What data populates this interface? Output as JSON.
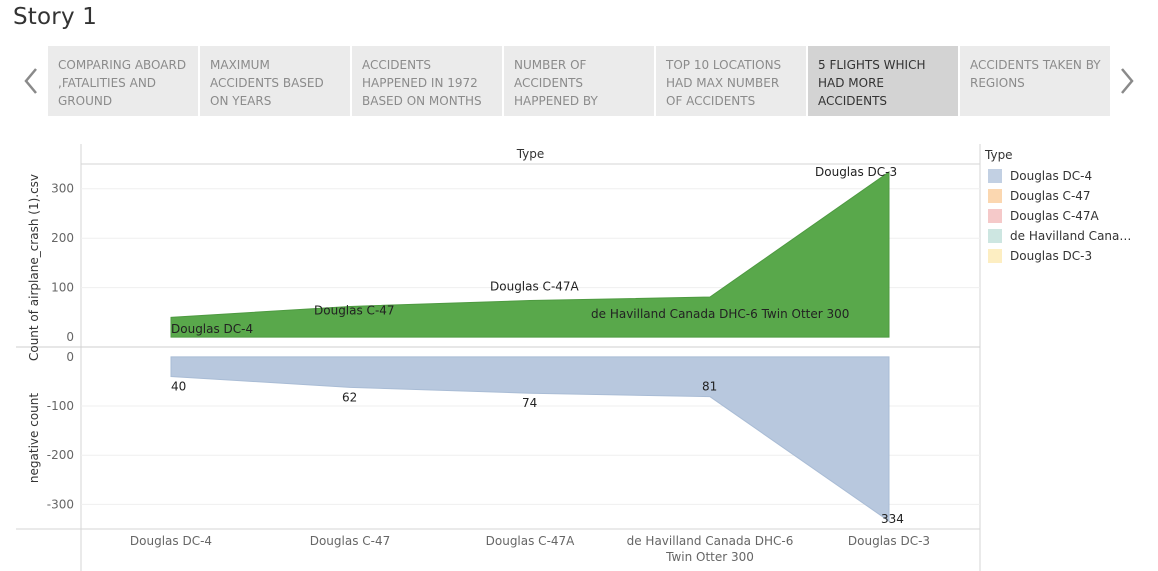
{
  "story_title": "Story 1",
  "nav": {
    "prev_icon": "chevron-left-icon",
    "next_icon": "chevron-right-icon",
    "items": [
      {
        "label": "COMPARING ABOARD ,FATALITIES AND GROUND",
        "active": false
      },
      {
        "label": "MAXIMUM ACCIDENTS BASED ON YEARS",
        "active": false
      },
      {
        "label": "ACCIDENTS HAPPENED IN 1972 BASED ON MONTHS",
        "active": false
      },
      {
        "label": "NUMBER OF ACCIDENTS HAPPENED BY",
        "active": false
      },
      {
        "label": "TOP 10 LOCATIONS HAD MAX NUMBER OF ACCIDENTS",
        "active": false
      },
      {
        "label": "5 FLIGHTS WHICH HAD MORE ACCIDENTS",
        "active": true
      },
      {
        "label": "ACCIDENTS TAKEN BY REGIONS",
        "active": false
      }
    ]
  },
  "legend": {
    "title": "Type",
    "items": [
      {
        "label": "Douglas DC-4",
        "color": "#c2d0e3"
      },
      {
        "label": "Douglas C-47",
        "color": "#fbd7b0"
      },
      {
        "label": "Douglas C-47A",
        "color": "#f5c9c9"
      },
      {
        "label": "de Havilland Canada ..",
        "color": "#cde6e1"
      },
      {
        "label": "Douglas DC-3",
        "color": "#fdeec2"
      }
    ]
  },
  "chart_data": {
    "type": "area",
    "column_header": "Type",
    "categories": [
      "Douglas DC-4",
      "Douglas C-47",
      "Douglas C-47A",
      "de Havilland Canada DHC-6 Twin Otter 300",
      "Douglas DC-3"
    ],
    "category_tick_labels": [
      "Douglas DC-4",
      "Douglas C-47",
      "Douglas C-47A",
      "de Havilland Canada DHC-6\nTwin Otter 300",
      "Douglas DC-3"
    ],
    "panels": [
      {
        "ylabel": "Count of airplane_crash (1).csv",
        "ylim": [
          -20,
          350
        ],
        "yticks": [
          0,
          100,
          200,
          300
        ],
        "color": "#59a84b",
        "values": [
          40,
          62,
          74,
          81,
          334
        ],
        "point_labels": [
          "Douglas DC-4",
          "Douglas C-47",
          "Douglas C-47A",
          "de Havilland Canada DHC-6 Twin Otter 300",
          "Douglas DC-3"
        ]
      },
      {
        "ylabel": "negative count",
        "ylim": [
          -350,
          20
        ],
        "yticks": [
          0,
          -100,
          -200,
          -300
        ],
        "color": "#b8c8de",
        "values": [
          -40,
          -62,
          -74,
          -81,
          -334
        ],
        "point_labels": [
          "40",
          "62",
          "74",
          "81",
          "334"
        ]
      }
    ],
    "grid": true,
    "legend_position": "right"
  }
}
